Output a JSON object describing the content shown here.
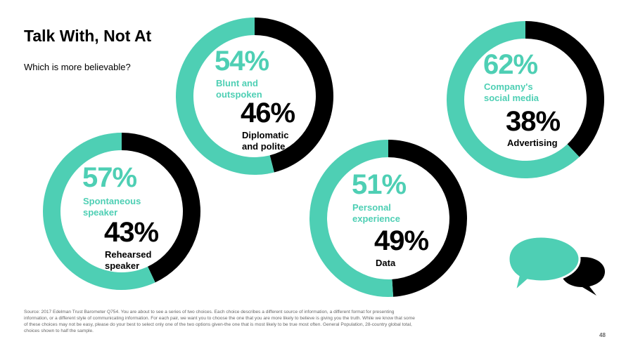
{
  "title": "Talk With, Not At",
  "subtitle": "Which is more believable?",
  "colors": {
    "teal": "#4ecfb4",
    "black": "#000000",
    "white": "#ffffff"
  },
  "chart_data": [
    {
      "type": "pie",
      "series": [
        {
          "name": "Blunt and outspoken",
          "value": 54,
          "label": "54%"
        },
        {
          "name": "Diplomatic and polite",
          "value": 46,
          "label": "46%"
        }
      ]
    },
    {
      "type": "pie",
      "series": [
        {
          "name": "Company's social media",
          "value": 62,
          "label": "62%"
        },
        {
          "name": "Advertising",
          "value": 38,
          "label": "38%"
        }
      ]
    },
    {
      "type": "pie",
      "series": [
        {
          "name": "Spontaneous speaker",
          "value": 57,
          "label": "57%"
        },
        {
          "name": "Rehearsed speaker",
          "value": 43,
          "label": "43%"
        }
      ]
    },
    {
      "type": "pie",
      "series": [
        {
          "name": "Personal experience",
          "value": 51,
          "label": "51%"
        },
        {
          "name": "Data",
          "value": 49,
          "label": "49%"
        }
      ]
    }
  ],
  "donuts": [
    {
      "a_pct": "54%",
      "a_line1": "Blunt and",
      "a_line2": "outspoken",
      "b_pct": "46%",
      "b_line1": "Diplomatic",
      "b_line2": "and polite"
    },
    {
      "a_pct": "62%",
      "a_line1": "Company's",
      "a_line2": "social media",
      "b_pct": "38%",
      "b_line1": "Advertising",
      "b_line2": ""
    },
    {
      "a_pct": "57%",
      "a_line1": "Spontaneous",
      "a_line2": "speaker",
      "b_pct": "43%",
      "b_line1": "Rehearsed",
      "b_line2": "speaker"
    },
    {
      "a_pct": "51%",
      "a_line1": "Personal",
      "a_line2": "experience",
      "b_pct": "49%",
      "b_line1": "Data",
      "b_line2": ""
    }
  ],
  "source": "Source: 2017 Edelman Trust Barometer Q754. You are about to see a series of two choices. Each choice describes a different source of information, a different format for presenting information, or a different style of communicating information. For each pair, we want you to choose the one that you are more likely to believe is giving you the truth. While we know that some of these choices may not be easy, please do your best to select only one of the two options given-the one that is most likely to be true most often. General Population, 28-country global total, choices shown to half the sample.",
  "page_number": "48",
  "icons": {
    "bubbles": "speech-bubbles-icon"
  }
}
